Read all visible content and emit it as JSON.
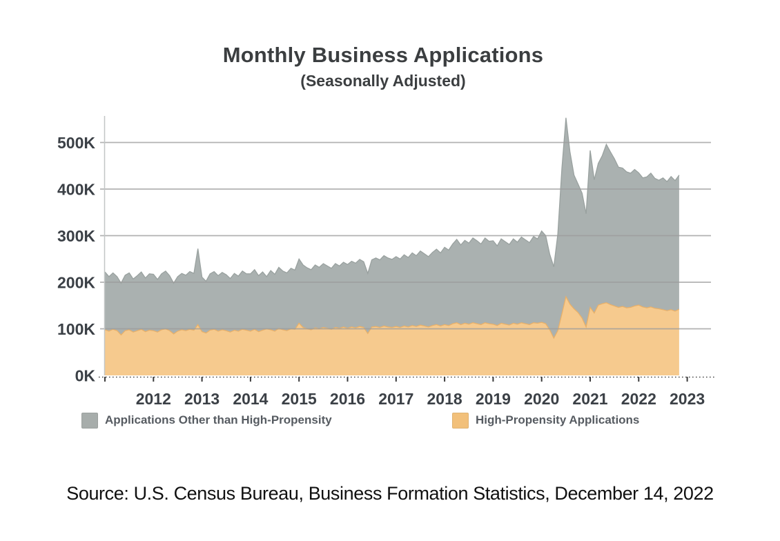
{
  "source_note": "Source: U.S. Census Bureau, Business Formation Statistics, December 14, 2022",
  "legend": {
    "items": [
      {
        "label": "Applications Other than High-Propensity",
        "color": "#a7adab"
      },
      {
        "label": "High-Propensity Applications",
        "color": "#f2c07a"
      }
    ]
  },
  "chart_data": {
    "type": "area",
    "stacked": true,
    "title": "Monthly Business Applications",
    "subtitle": "(Seasonally Adjusted)",
    "frequency": "monthly",
    "x_start": "2011-01",
    "x_end": "2022-11",
    "unit": "applications per month, thousands (K)",
    "grid": "horizontal",
    "legend_position": "bottom",
    "x_axis": {
      "first_tick_year": 2011,
      "last_tick_year": 2023,
      "tick_labels": [
        "2012",
        "2013",
        "2014",
        "2015",
        "2016",
        "2017",
        "2018",
        "2019",
        "2020",
        "2021",
        "2022",
        "2023"
      ]
    },
    "y_axis": {
      "tick_labels": [
        "0K",
        "100K",
        "200K",
        "300K",
        "400K",
        "500K"
      ],
      "tick_values_thousands": [
        0,
        100,
        200,
        300,
        400,
        500
      ],
      "ylim_thousands": [
        0,
        560
      ]
    },
    "series": [
      {
        "name": "High-Propensity Applications",
        "stack_order": "bottom",
        "color": "#f6ca8e",
        "edge_color": "#e8b069",
        "values_thousands": [
          98,
          95,
          99,
          96,
          87,
          96,
          98,
          93,
          96,
          99,
          94,
          97,
          96,
          93,
          98,
          100,
          96,
          89,
          95,
          98,
          96,
          99,
          97,
          109,
          94,
          91,
          97,
          99,
          95,
          98,
          96,
          93,
          97,
          95,
          99,
          97,
          95,
          99,
          94,
          97,
          100,
          98,
          95,
          101,
          98,
          96,
          100,
          99,
          112,
          103,
          100,
          98,
          102,
          100,
          103,
          101,
          99,
          103,
          101,
          104,
          101,
          104,
          102,
          105,
          103,
          90,
          104,
          105,
          103,
          106,
          104,
          103,
          105,
          103,
          106,
          104,
          107,
          105,
          108,
          106,
          104,
          107,
          109,
          106,
          109,
          107,
          111,
          113,
          109,
          112,
          110,
          113,
          111,
          109,
          113,
          111,
          110,
          107,
          112,
          110,
          108,
          112,
          110,
          113,
          111,
          109,
          113,
          112,
          114,
          111,
          98,
          80,
          96,
          132,
          169,
          153,
          143,
          135,
          123,
          104,
          146,
          134,
          151,
          154,
          156,
          152,
          149,
          146,
          148,
          145,
          146,
          149,
          151,
          147,
          145,
          147,
          144,
          143,
          141,
          139,
          141,
          138,
          142
        ]
      },
      {
        "name": "Applications Other than High-Propensity",
        "stack_order": "top",
        "color": "#aab1b0",
        "edge_color": "#99a19f",
        "values_thousands": [
          124,
          117,
          121,
          116,
          111,
          119,
          122,
          114,
          118,
          123,
          115,
          121,
          121,
          113,
          120,
          124,
          118,
          109,
          117,
          121,
          119,
          124,
          122,
          163,
          117,
          111,
          121,
          124,
          119,
          123,
          120,
          115,
          122,
          118,
          125,
          121,
          123,
          128,
          120,
          125,
          112,
          127,
          122,
          131,
          126,
          124,
          130,
          127,
          138,
          134,
          131,
          129,
          135,
          132,
          137,
          134,
          131,
          137,
          134,
          139,
          137,
          141,
          139,
          144,
          141,
          129,
          144,
          147,
          145,
          151,
          148,
          146,
          150,
          147,
          153,
          149,
          156,
          152,
          159,
          155,
          151,
          157,
          162,
          157,
          166,
          162,
          171,
          179,
          171,
          178,
          174,
          182,
          178,
          173,
          182,
          177,
          179,
          171,
          181,
          177,
          173,
          181,
          176,
          184,
          180,
          176,
          185,
          181,
          196,
          189,
          162,
          153,
          207,
          312,
          384,
          327,
          287,
          276,
          268,
          243,
          337,
          286,
          304,
          318,
          340,
          328,
          316,
          301,
          297,
          292,
          288,
          293,
          284,
          277,
          281,
          287,
          279,
          276,
          283,
          277,
          286,
          280,
          288
        ]
      }
    ]
  }
}
